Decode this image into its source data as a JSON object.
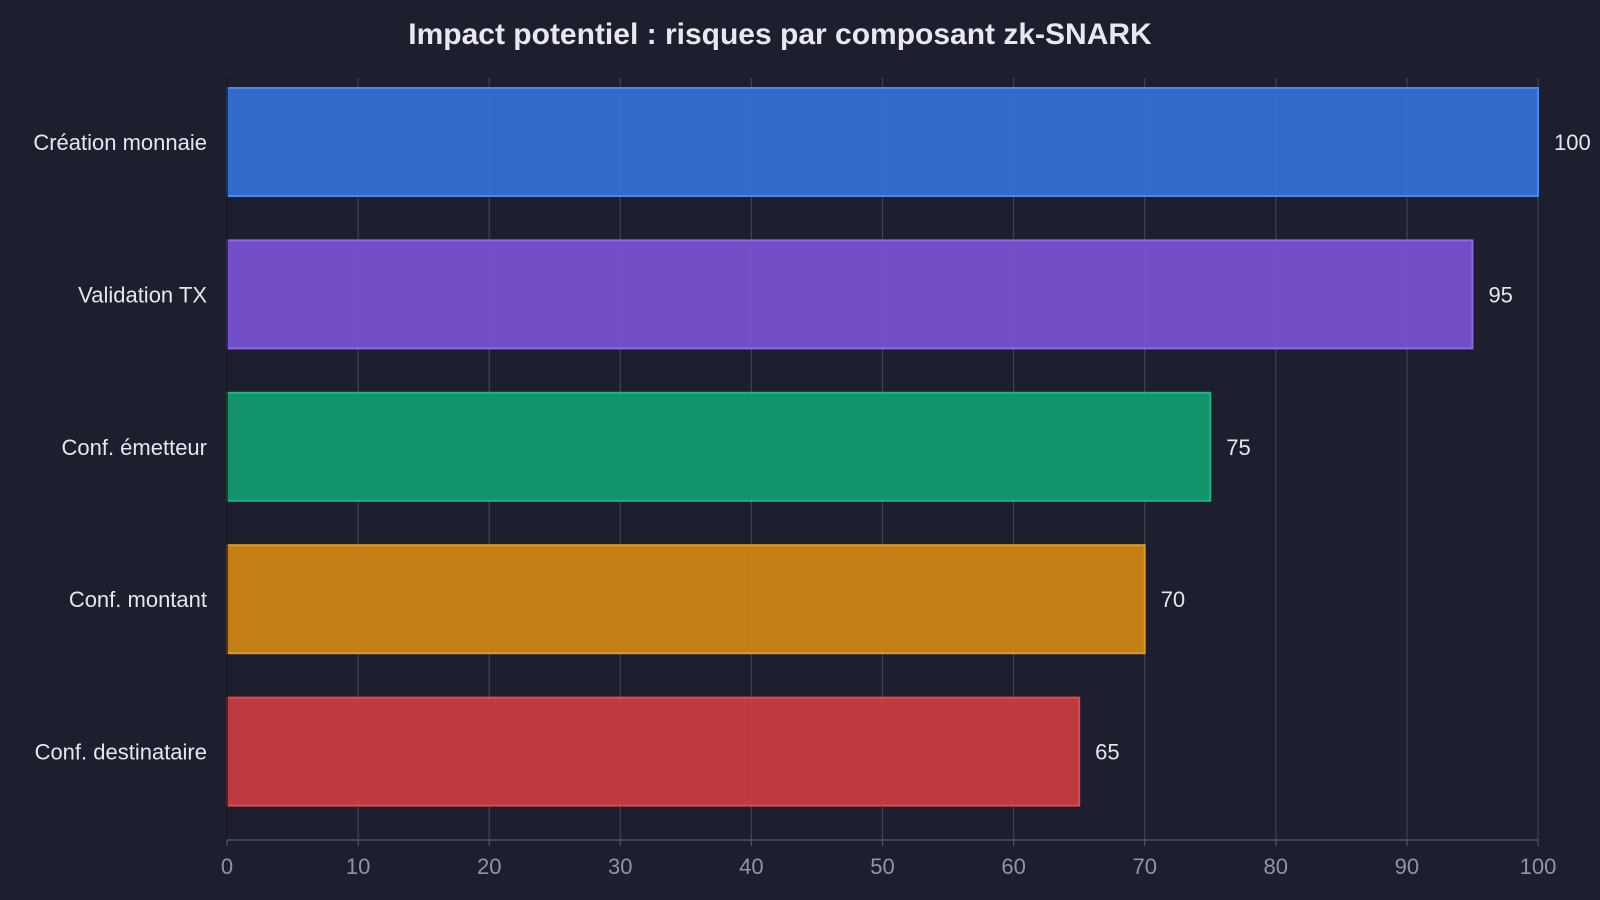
{
  "chart_data": {
    "type": "bar",
    "orientation": "horizontal",
    "title": "Impact potentiel : risques par composant zk-SNARK",
    "xlabel": "",
    "ylabel": "",
    "categories": [
      "Création monnaie",
      "Validation TX",
      "Conf. émetteur",
      "Conf. montant",
      "Conf. destinataire"
    ],
    "values": [
      100,
      95,
      75,
      70,
      65
    ],
    "data_labels": [
      "100",
      "95",
      "75",
      "70",
      "65"
    ],
    "colors": [
      "#3570d6",
      "#7752cf",
      "#139a70",
      "#cc8414",
      "#c63c40"
    ],
    "edge_colors": [
      "#4a86f0",
      "#8c68e8",
      "#1eb585",
      "#e39a1f",
      "#de4a4e"
    ],
    "xlim": [
      0,
      100
    ],
    "xticks": [
      0,
      10,
      20,
      30,
      40,
      50,
      60,
      70,
      80,
      90,
      100
    ],
    "xtick_labels": [
      "0",
      "10",
      "20",
      "30",
      "40",
      "50",
      "60",
      "70",
      "80",
      "90",
      "100"
    ],
    "grid": true,
    "grid_axis": "x",
    "background": "#1e1f2e",
    "grid_color": "#3a4356"
  }
}
